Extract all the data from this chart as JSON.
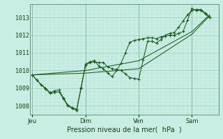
{
  "bg_color": "#c8eee4",
  "grid_color_major": "#99ccbb",
  "grid_color_minor": "#b8ddd4",
  "line_color": "#1a5c1a",
  "xlabel": "Pression niveau de la mer(  hPa  )",
  "day_labels": [
    "Jeu",
    "Dim",
    "Ven",
    "Sam"
  ],
  "ylabel_ticks": [
    1008,
    1009,
    1010,
    1011,
    1012,
    1013
  ],
  "line1_x": [
    0,
    4,
    8,
    12,
    16,
    20,
    24,
    28,
    32,
    36,
    40,
    44,
    48,
    52,
    56,
    60,
    64,
    68,
    72,
    76,
    80,
    84,
    88,
    92,
    96,
    100,
    104,
    108,
    112,
    116,
    120,
    124,
    128,
    132,
    136,
    140,
    144,
    148,
    152,
    156,
    160
  ],
  "line1_y": [
    1009.75,
    1009.45,
    1009.2,
    1008.95,
    1008.7,
    1008.75,
    1008.8,
    1008.4,
    1008.0,
    1007.85,
    1007.75,
    1009.0,
    1010.3,
    1010.45,
    1010.5,
    1010.45,
    1010.45,
    1010.2,
    1010.1,
    1010.05,
    1010.0,
    1009.8,
    1009.6,
    1009.55,
    1009.5,
    1010.6,
    1011.65,
    1011.65,
    1011.55,
    1011.75,
    1012.0,
    1012.1,
    1012.15,
    1012.45,
    1012.8,
    1013.15,
    1013.4,
    1013.45,
    1013.45,
    1013.25,
    1013.0
  ],
  "line2_x": [
    0,
    4,
    8,
    12,
    16,
    20,
    24,
    28,
    32,
    36,
    40,
    44,
    48,
    52,
    56,
    60,
    64,
    68,
    72,
    76,
    80,
    84,
    88,
    92,
    96,
    100,
    104,
    108,
    112,
    116,
    120,
    124,
    128,
    132,
    136,
    140,
    144,
    148,
    152,
    156,
    160
  ],
  "line2_y": [
    1009.75,
    1009.45,
    1009.2,
    1009.0,
    1008.75,
    1008.85,
    1008.9,
    1008.45,
    1008.05,
    1007.9,
    1007.8,
    1009.05,
    1010.35,
    1010.5,
    1010.55,
    1010.25,
    1010.1,
    1009.85,
    1009.65,
    1010.0,
    1010.4,
    1011.0,
    1011.6,
    1011.7,
    1011.75,
    1011.8,
    1011.85,
    1011.85,
    1011.8,
    1011.9,
    1011.95,
    1012.0,
    1012.0,
    1012.1,
    1012.2,
    1012.85,
    1013.5,
    1013.4,
    1013.4,
    1013.2,
    1013.0
  ],
  "line3_x": [
    0,
    48,
    96,
    144,
    160
  ],
  "line3_y": [
    1009.75,
    1009.85,
    1010.1,
    1012.05,
    1013.1
  ],
  "line4_x": [
    0,
    48,
    96,
    144,
    160
  ],
  "line4_y": [
    1009.75,
    1010.0,
    1010.55,
    1012.2,
    1013.15
  ],
  "ylim": [
    1007.5,
    1013.75
  ],
  "xlim": [
    -2,
    168
  ]
}
